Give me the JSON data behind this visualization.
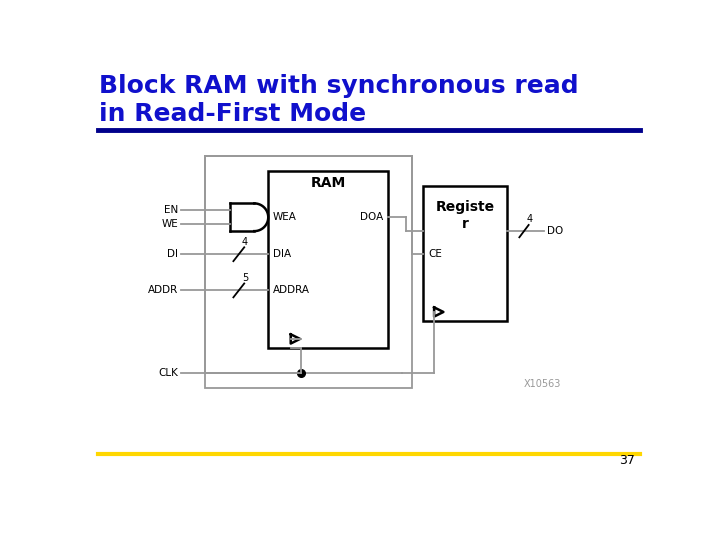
{
  "title_line1": "Block RAM with synchronous read",
  "title_line2": "in Read-First Mode",
  "title_color": "#1010CC",
  "title_fontsize": 18,
  "top_line_color": "#00008B",
  "bottom_line_color": "#FFD700",
  "page_number": "37",
  "bg_color": "#FFFFFF",
  "diagram_color": "#999999",
  "black": "#000000",
  "watermark": "X10563",
  "lw_diagram": 1.3,
  "lw_block": 1.8
}
